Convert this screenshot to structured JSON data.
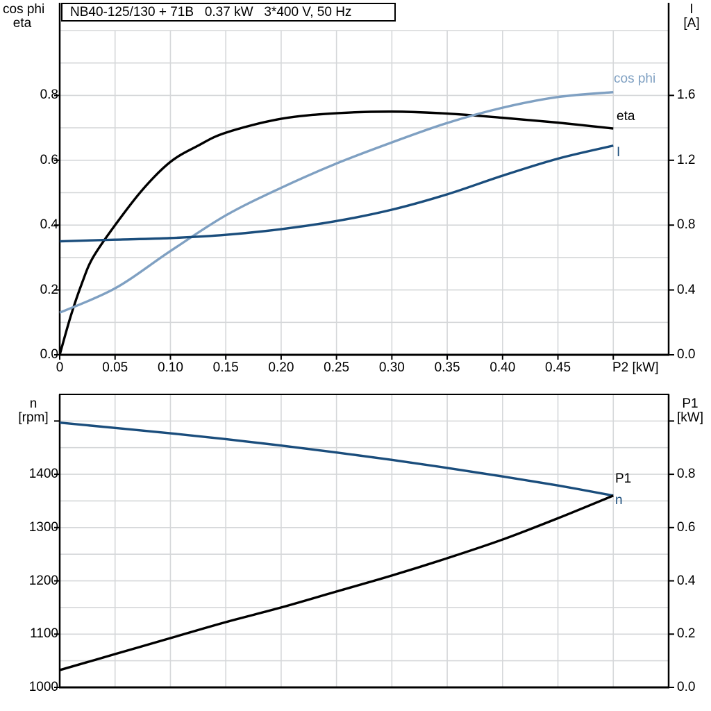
{
  "title_box": {
    "text": "NB40-125/130 + 71B   0.37 kW   3*400 V, 50 Hz"
  },
  "colors": {
    "black": "#000000",
    "light_blue": "#7FA0C2",
    "dark_blue": "#1A4D7C",
    "grid": "#D5D7D9",
    "background": "#FFFFFF"
  },
  "axis_headers": {
    "top_left_line1": "cos phi",
    "top_left_line2": "eta",
    "top_right_line1": "I",
    "top_right_line2": "[A]",
    "bottom_left_line1": "n",
    "bottom_left_line2": "[rpm]",
    "bottom_right_line1": "P1",
    "bottom_right_line2": "[kW]"
  },
  "curve_labels": {
    "cos_phi": "cos phi",
    "eta": "eta",
    "current": "I",
    "p1": "P1",
    "n": "n"
  },
  "chart_data": [
    {
      "type": "line",
      "id": "top",
      "title": "NB40-125/130 + 71B   0.37 kW   3*400 V, 50 Hz",
      "xlabel": "P2 [kW]",
      "ylabel_left": "cos phi / eta",
      "ylabel_right": "I [A]",
      "xlim": [
        0,
        0.55
      ],
      "ylim_left": [
        0,
        1.0
      ],
      "ylim_right": [
        0,
        2.0
      ],
      "grid": true,
      "x_grid_step": 0.05,
      "y_grid_step_left": 0.1,
      "x_ticks": [
        0,
        0.05,
        0.1,
        0.15,
        0.2,
        0.25,
        0.3,
        0.35,
        0.4,
        0.45,
        0.5
      ],
      "x_tick_labels": [
        "0",
        "0.05",
        "0.10",
        "0.15",
        "0.20",
        "0.25",
        "0.30",
        "0.35",
        "0.40",
        "0.45",
        ""
      ],
      "left_ticks": [
        0,
        0.2,
        0.4,
        0.6,
        0.8
      ],
      "left_tick_labels": [
        "0.0",
        "0.2",
        "0.4",
        "0.6",
        "0.8"
      ],
      "right_ticks": [
        0,
        0.4,
        0.8,
        1.2,
        1.6
      ],
      "right_tick_labels": [
        "0.0",
        "0.4",
        "0.8",
        "1.2",
        "1.6"
      ],
      "series": [
        {
          "name": "eta",
          "label": "eta",
          "axis": "left",
          "color_key": "black",
          "x": [
            0,
            0.01,
            0.02,
            0.03,
            0.05,
            0.075,
            0.1,
            0.125,
            0.15,
            0.2,
            0.25,
            0.3,
            0.35,
            0.4,
            0.45,
            0.5
          ],
          "y": [
            0,
            0.12,
            0.22,
            0.3,
            0.4,
            0.51,
            0.595,
            0.645,
            0.685,
            0.728,
            0.745,
            0.75,
            0.744,
            0.731,
            0.716,
            0.698
          ]
        },
        {
          "name": "cos phi",
          "label": "cos phi",
          "axis": "left",
          "color_key": "light_blue",
          "x": [
            0,
            0.05,
            0.1,
            0.15,
            0.2,
            0.25,
            0.3,
            0.35,
            0.4,
            0.45,
            0.5
          ],
          "y": [
            0.13,
            0.205,
            0.32,
            0.43,
            0.515,
            0.59,
            0.655,
            0.715,
            0.762,
            0.795,
            0.81
          ]
        },
        {
          "name": "I",
          "label": "I",
          "axis": "right",
          "color_key": "dark_blue",
          "x": [
            0,
            0.05,
            0.1,
            0.15,
            0.2,
            0.25,
            0.3,
            0.35,
            0.4,
            0.45,
            0.5
          ],
          "y": [
            0.7,
            0.71,
            0.72,
            0.74,
            0.775,
            0.825,
            0.895,
            0.99,
            1.105,
            1.21,
            1.29
          ]
        }
      ]
    },
    {
      "type": "line",
      "id": "bottom",
      "xlabel": "",
      "ylabel_left": "n [rpm]",
      "ylabel_right": "P1 [kW]",
      "xlim": [
        0,
        0.55
      ],
      "ylim_left": [
        1000,
        1550
      ],
      "ylim_right": [
        0,
        1.1
      ],
      "grid": true,
      "x_grid_step": 0.05,
      "y_grid_step_left": 50,
      "left_ticks": [
        1000,
        1100,
        1200,
        1300,
        1400,
        1500
      ],
      "left_tick_labels": [
        "1000",
        "1100",
        "1200",
        "1300",
        "1400",
        ""
      ],
      "right_ticks": [
        0,
        0.2,
        0.4,
        0.6,
        0.8,
        1.0
      ],
      "right_tick_labels": [
        "0.0",
        "0.2",
        "0.4",
        "0.6",
        "0.8",
        ""
      ],
      "series": [
        {
          "name": "n",
          "label": "n",
          "axis": "left",
          "color_key": "dark_blue",
          "x": [
            0,
            0.05,
            0.1,
            0.15,
            0.2,
            0.25,
            0.3,
            0.35,
            0.4,
            0.45,
            0.5
          ],
          "y": [
            1497,
            1487,
            1477,
            1466,
            1454,
            1441,
            1427,
            1412,
            1396,
            1379,
            1360
          ]
        },
        {
          "name": "P1",
          "label": "P1",
          "axis": "right",
          "color_key": "black",
          "x": [
            0,
            0.05,
            0.1,
            0.15,
            0.2,
            0.25,
            0.3,
            0.35,
            0.4,
            0.45,
            0.5
          ],
          "y": [
            0.065,
            0.125,
            0.185,
            0.245,
            0.3,
            0.36,
            0.42,
            0.485,
            0.555,
            0.635,
            0.72
          ]
        }
      ]
    }
  ]
}
